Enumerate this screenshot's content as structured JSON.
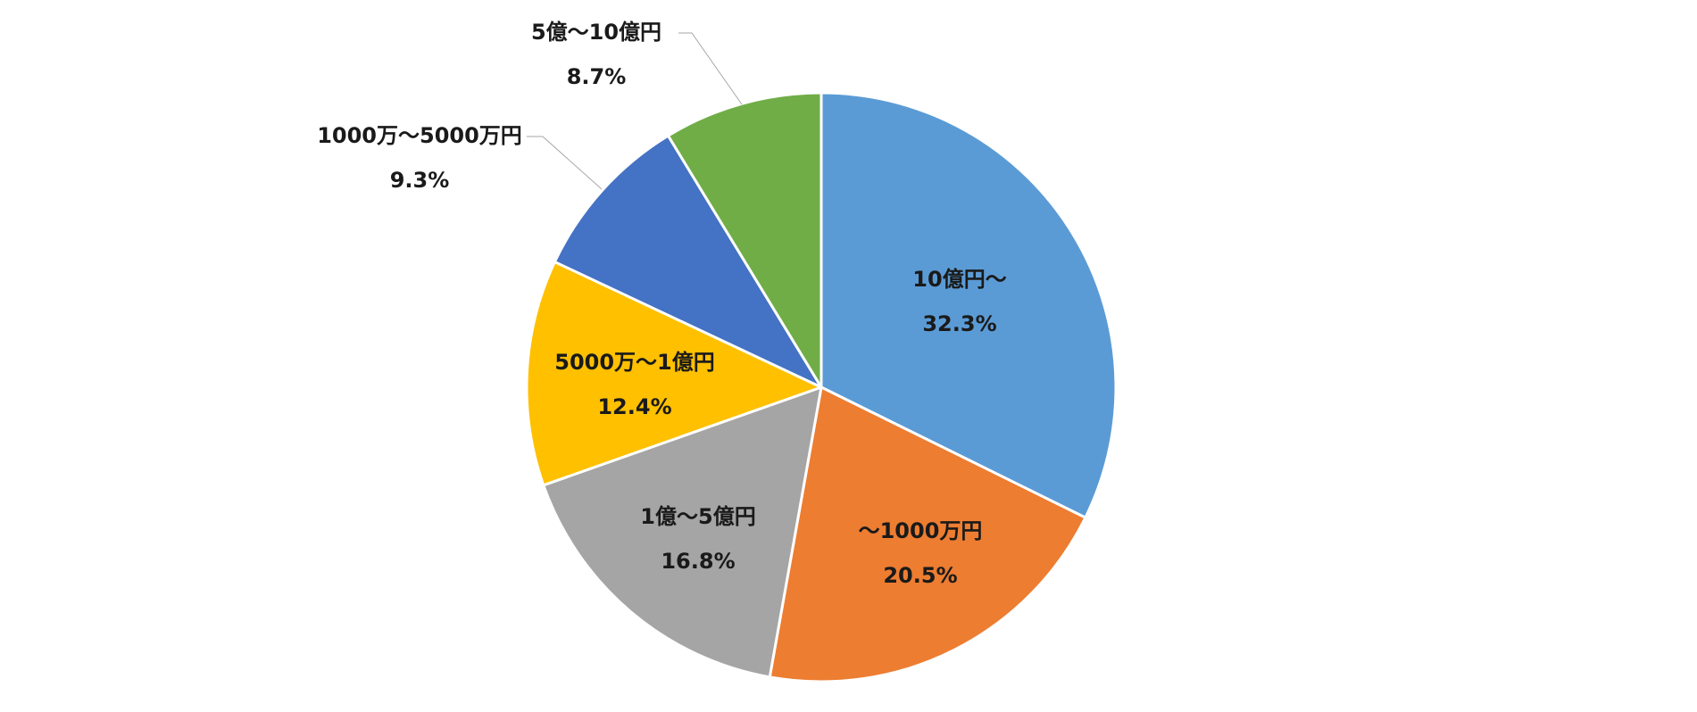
{
  "chart_data": {
    "type": "pie",
    "title": "",
    "legend": "none",
    "start_angle_deg": 0,
    "direction": "clockwise",
    "slices": [
      {
        "label": "10億円～",
        "value": 32.3,
        "value_label": "32.3%",
        "color": "#5B9BD5"
      },
      {
        "label": "～1000万円",
        "value": 20.5,
        "value_label": "20.5%",
        "color": "#ED7D31"
      },
      {
        "label": "1億～5億円",
        "value": 16.8,
        "value_label": "16.8%",
        "color": "#A5A5A5"
      },
      {
        "label": "5000万～1億円",
        "value": 12.4,
        "value_label": "12.4%",
        "color": "#FFC000"
      },
      {
        "label": "1000万～5000万円",
        "value": 9.3,
        "value_label": "9.3%",
        "color": "#4472C4"
      },
      {
        "label": "5億～10億円",
        "value": 8.7,
        "value_label": "8.7%",
        "color": "#70AD47"
      }
    ]
  }
}
